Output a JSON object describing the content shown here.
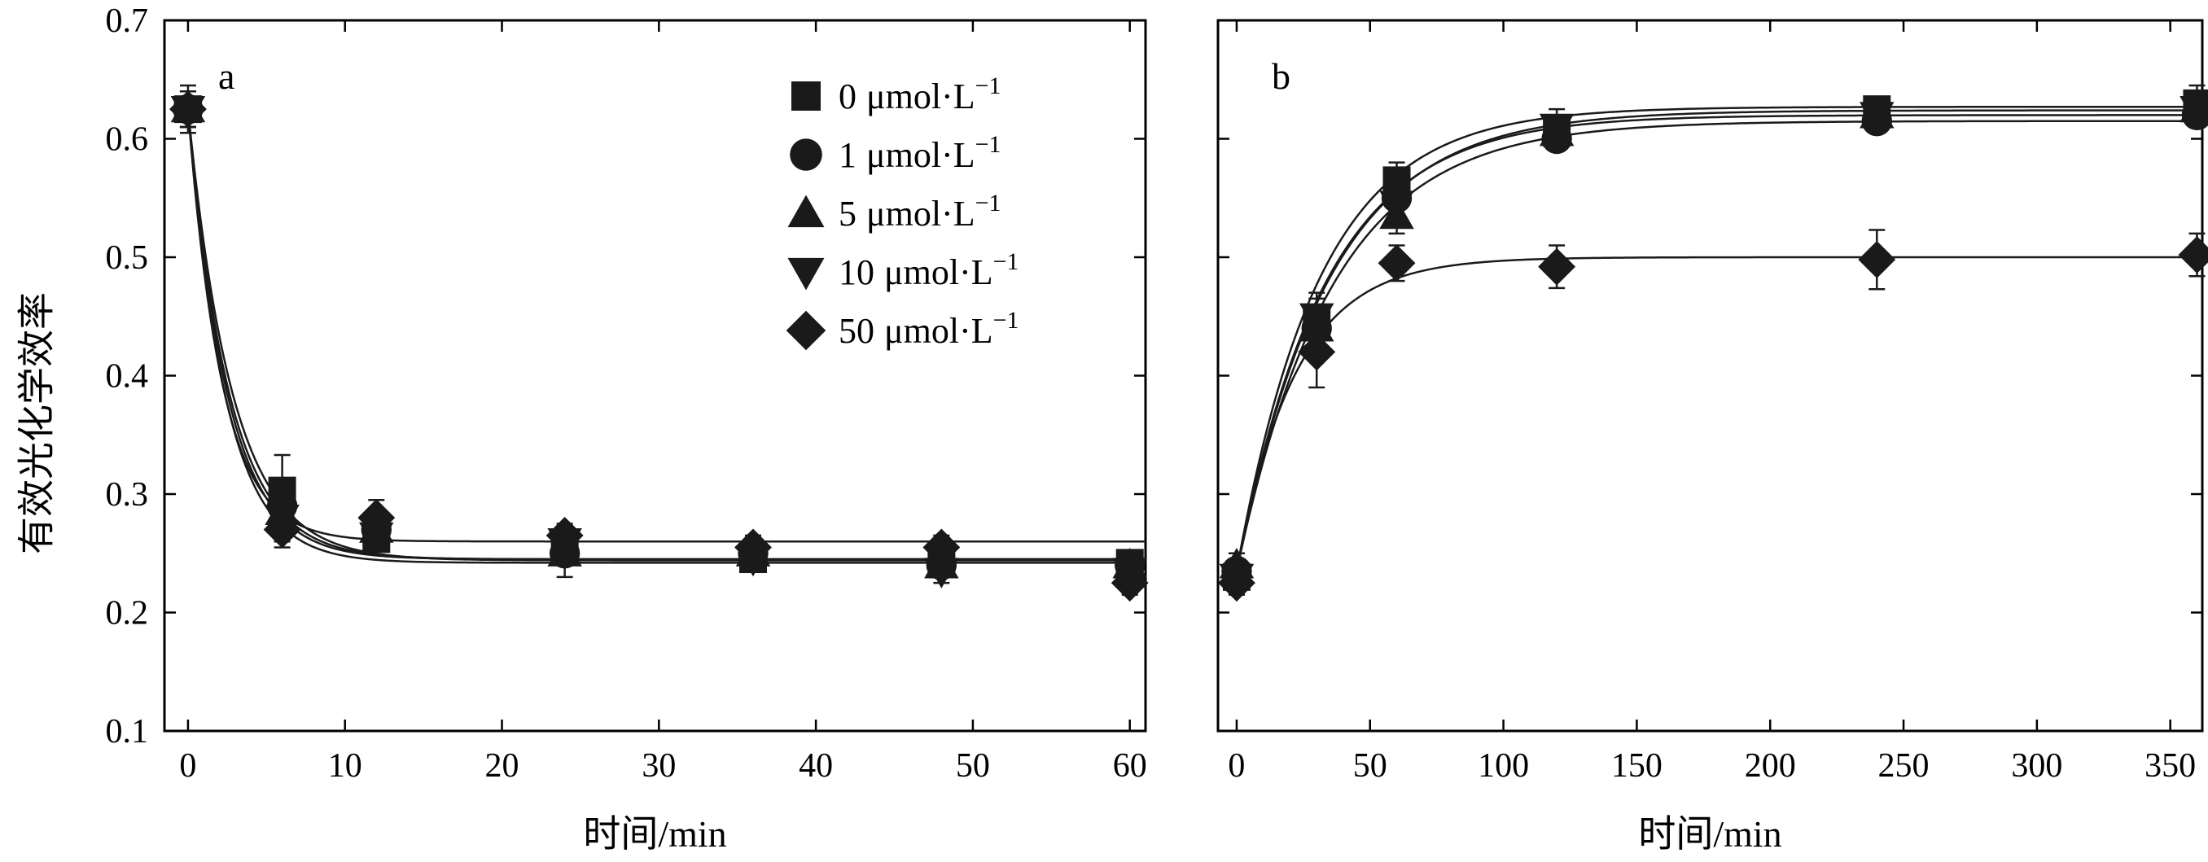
{
  "chart_data": [
    {
      "type": "scatter",
      "panel_label": "a",
      "xlabel": "时间/min",
      "ylabel": "有效光化学效率",
      "xlim": [
        -1.5,
        61
      ],
      "ylim": [
        0.1,
        0.7
      ],
      "xticks": [
        0,
        10,
        20,
        30,
        40,
        50,
        60
      ],
      "yticks": [
        0.1,
        0.2,
        0.3,
        0.4,
        0.5,
        0.6,
        0.7
      ],
      "ytick_labels": [
        "0.1",
        "0.2",
        "0.3",
        "0.4",
        "0.5",
        "0.6",
        "0.7"
      ],
      "legend_position": "top-right",
      "fit_curves": true,
      "x": [
        0,
        6,
        12,
        24,
        36,
        48,
        60
      ],
      "series": [
        {
          "name": "0 μmol·L⁻¹",
          "legend": {
            "value": "0",
            "unit": "μmol·L",
            "sup": "−1"
          },
          "marker": "square",
          "values": [
            0.625,
            0.303,
            0.262,
            0.257,
            0.245,
            0.246,
            0.242
          ],
          "errors": [
            0.02,
            0.03,
            0.01,
            0.01,
            0.01,
            0.01,
            0.01
          ],
          "fit": {
            "y0": 0.625,
            "yinf": 0.244,
            "k": 0.35
          }
        },
        {
          "name": "1 μmol·L⁻¹",
          "legend": {
            "value": "1",
            "unit": "μmol·L",
            "sup": "−1"
          },
          "marker": "circle",
          "values": [
            0.625,
            0.29,
            0.27,
            0.25,
            0.25,
            0.24,
            0.24
          ],
          "errors": [
            0.015,
            0.02,
            0.01,
            0.01,
            0.01,
            0.01,
            0.01
          ],
          "fit": {
            "y0": 0.625,
            "yinf": 0.245,
            "k": 0.38
          }
        },
        {
          "name": "5 μmol·L⁻¹",
          "legend": {
            "value": "5",
            "unit": "μmol·L",
            "sup": "−1"
          },
          "marker": "triangle-up",
          "values": [
            0.625,
            0.285,
            0.27,
            0.25,
            0.25,
            0.24,
            0.24
          ],
          "errors": [
            0.015,
            0.02,
            0.01,
            0.02,
            0.01,
            0.01,
            0.01
          ],
          "fit": {
            "y0": 0.625,
            "yinf": 0.245,
            "k": 0.4
          }
        },
        {
          "name": "10 μmol·L⁻¹",
          "legend": {
            "value": "10",
            "unit": "μmol·L",
            "sup": "−1"
          },
          "marker": "triangle-down",
          "values": [
            0.625,
            0.28,
            0.265,
            0.26,
            0.245,
            0.235,
            0.235
          ],
          "errors": [
            0.015,
            0.02,
            0.01,
            0.01,
            0.01,
            0.01,
            0.01
          ],
          "fit": {
            "y0": 0.625,
            "yinf": 0.242,
            "k": 0.42
          }
        },
        {
          "name": "50 μmol·L⁻¹",
          "legend": {
            "value": "50",
            "unit": "μmol·L",
            "sup": "−1"
          },
          "marker": "diamond",
          "values": [
            0.625,
            0.27,
            0.28,
            0.265,
            0.255,
            0.255,
            0.225
          ],
          "errors": [
            0.01,
            0.015,
            0.015,
            0.01,
            0.01,
            0.01,
            0.01
          ],
          "fit": {
            "y0": 0.625,
            "yinf": 0.26,
            "k": 0.46
          }
        }
      ]
    },
    {
      "type": "scatter",
      "panel_label": "b",
      "xlabel": "时间/min",
      "ylabel": "",
      "xlim": [
        -7,
        362
      ],
      "ylim": [
        0.1,
        0.7
      ],
      "xticks": [
        0,
        50,
        100,
        150,
        200,
        250,
        300,
        350
      ],
      "yticks": [
        0.1,
        0.2,
        0.3,
        0.4,
        0.5,
        0.6,
        0.7
      ],
      "fit_curves": true,
      "x": [
        0,
        30,
        60,
        120,
        240,
        360
      ],
      "series": [
        {
          "name": "0 μmol·L⁻¹",
          "marker": "square",
          "values": [
            0.23,
            0.445,
            0.565,
            0.605,
            0.625,
            0.63
          ],
          "errors": [
            0.01,
            0.02,
            0.015,
            0.01,
            0.01,
            0.015
          ],
          "fit": {
            "y0": 0.235,
            "yinf": 0.627,
            "k": 0.032
          }
        },
        {
          "name": "1 μmol·L⁻¹",
          "marker": "circle",
          "values": [
            0.235,
            0.44,
            0.55,
            0.6,
            0.615,
            0.62
          ],
          "errors": [
            0.01,
            0.02,
            0.015,
            0.01,
            0.01,
            0.01
          ],
          "fit": {
            "y0": 0.235,
            "yinf": 0.62,
            "k": 0.03
          }
        },
        {
          "name": "5 μmol·L⁻¹",
          "marker": "triangle-up",
          "values": [
            0.24,
            0.44,
            0.535,
            0.605,
            0.62,
            0.625
          ],
          "errors": [
            0.01,
            0.02,
            0.015,
            0.015,
            0.01,
            0.01
          ],
          "fit": {
            "y0": 0.235,
            "yinf": 0.624,
            "k": 0.029
          }
        },
        {
          "name": "10 μmol·L⁻¹",
          "marker": "triangle-down",
          "values": [
            0.23,
            0.45,
            0.545,
            0.61,
            0.62,
            0.625
          ],
          "errors": [
            0.01,
            0.02,
            0.015,
            0.015,
            0.01,
            0.01
          ],
          "fit": {
            "y0": 0.235,
            "yinf": 0.615,
            "k": 0.028
          }
        },
        {
          "name": "50 μmol·L⁻¹",
          "marker": "diamond",
          "values": [
            0.225,
            0.42,
            0.495,
            0.492,
            0.498,
            0.502
          ],
          "errors": [
            0.01,
            0.03,
            0.015,
            0.018,
            0.025,
            0.018
          ],
          "fit": {
            "y0": 0.235,
            "yinf": 0.5,
            "k": 0.045
          }
        }
      ]
    }
  ]
}
